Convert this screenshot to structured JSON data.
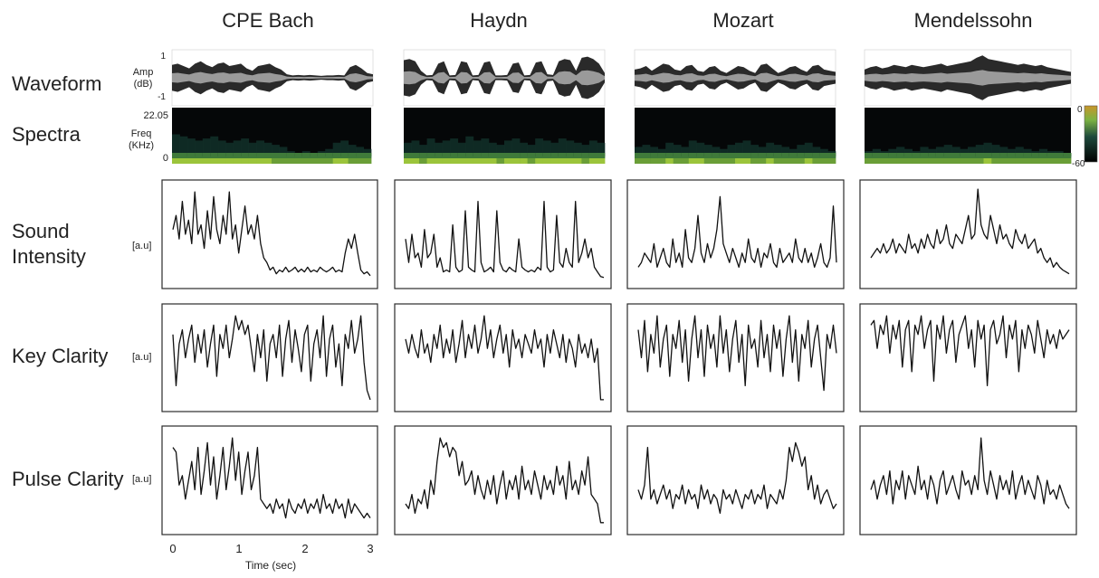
{
  "chart_data": {
    "type": "line",
    "composers": [
      "CPE Bach",
      "Haydn",
      "Mozart",
      "Mendelssohn"
    ],
    "row_labels": {
      "waveform": "Waveform",
      "spectra": "Spectra",
      "sound_intensity": [
        "Sound",
        "Intensity"
      ],
      "key_clarity": "Key Clarity",
      "pulse_clarity": "Pulse Clarity"
    },
    "waveform_axis": {
      "unit": [
        "Amp",
        "(dB)"
      ],
      "ticks": [
        "1",
        "-1"
      ],
      "ylim": [
        -1,
        1
      ]
    },
    "spectra_axis": {
      "unit": [
        "Freq",
        "(KHz)"
      ],
      "ticks": [
        "22.05",
        "0"
      ],
      "ylim": [
        0,
        22.05
      ]
    },
    "colorbar": {
      "ticks": [
        "0",
        "-60"
      ],
      "range": [
        -60,
        0
      ],
      "colors": [
        "#c8952a",
        "#7cb342",
        "#1e4a3c",
        "#000000"
      ]
    },
    "au_unit": "[a.u]",
    "x_axis": {
      "label": "Time (sec)",
      "ticks": [
        "0",
        "1",
        "2",
        "3"
      ],
      "xlim": [
        0,
        3
      ]
    },
    "series": {
      "waveform": [
        [
          0.55,
          0.6,
          0.5,
          0.4,
          0.6,
          0.7,
          0.55,
          0.45,
          0.6,
          0.65,
          0.5,
          0.55,
          0.6,
          0.4,
          0.3,
          0.5,
          0.55,
          0.6,
          0.45,
          0.35,
          0.15,
          0.1,
          0.12,
          0.1,
          0.12,
          0.1,
          0.08,
          0.1,
          0.1,
          0.12,
          0.1,
          0.45,
          0.55,
          0.4,
          0.2,
          0.15
        ],
        [
          0.75,
          0.8,
          0.7,
          0.3,
          0.1,
          0.12,
          0.6,
          0.7,
          0.1,
          0.12,
          0.7,
          0.65,
          0.1,
          0.12,
          0.65,
          0.7,
          0.1,
          0.1,
          0.12,
          0.6,
          0.65,
          0.1,
          0.12,
          0.65,
          0.7,
          0.15,
          0.12,
          0.7,
          0.8,
          0.75,
          0.3,
          0.85,
          0.9,
          0.8,
          0.6,
          0.2
        ],
        [
          0.35,
          0.4,
          0.5,
          0.3,
          0.45,
          0.6,
          0.55,
          0.35,
          0.3,
          0.5,
          0.55,
          0.3,
          0.25,
          0.45,
          0.5,
          0.3,
          0.2,
          0.35,
          0.5,
          0.45,
          0.3,
          0.2,
          0.55,
          0.6,
          0.4,
          0.2,
          0.3,
          0.45,
          0.5,
          0.35,
          0.25,
          0.5,
          0.55,
          0.35,
          0.3,
          0.25
        ],
        [
          0.35,
          0.45,
          0.5,
          0.4,
          0.45,
          0.55,
          0.5,
          0.45,
          0.55,
          0.5,
          0.45,
          0.5,
          0.55,
          0.6,
          0.5,
          0.55,
          0.6,
          0.65,
          0.7,
          0.85,
          0.95,
          0.8,
          0.75,
          0.7,
          0.65,
          0.6,
          0.55,
          0.6,
          0.55,
          0.5,
          0.55,
          0.45,
          0.4,
          0.35,
          0.3,
          0.25
        ]
      ],
      "spectra_energy": [
        [
          0.7,
          0.65,
          0.6,
          0.55,
          0.6,
          0.65,
          0.55,
          0.5,
          0.55,
          0.6,
          0.5,
          0.55,
          0.5,
          0.45,
          0.4,
          0.3,
          0.25,
          0.3,
          0.25,
          0.3,
          0.35,
          0.5,
          0.55,
          0.45,
          0.4,
          0.35
        ],
        [
          0.5,
          0.55,
          0.45,
          0.6,
          0.5,
          0.55,
          0.6,
          0.5,
          0.65,
          0.55,
          0.6,
          0.5,
          0.45,
          0.55,
          0.6,
          0.5,
          0.45,
          0.6,
          0.55,
          0.5,
          0.6,
          0.55,
          0.5,
          0.45,
          0.55,
          0.5
        ],
        [
          0.4,
          0.45,
          0.4,
          0.35,
          0.5,
          0.45,
          0.4,
          0.55,
          0.5,
          0.45,
          0.4,
          0.35,
          0.45,
          0.5,
          0.55,
          0.45,
          0.4,
          0.5,
          0.45,
          0.4,
          0.35,
          0.45,
          0.5,
          0.4,
          0.35,
          0.3
        ],
        [
          0.3,
          0.35,
          0.3,
          0.35,
          0.4,
          0.35,
          0.3,
          0.4,
          0.35,
          0.4,
          0.45,
          0.4,
          0.35,
          0.4,
          0.45,
          0.5,
          0.45,
          0.4,
          0.35,
          0.4,
          0.35,
          0.3,
          0.35,
          0.3,
          0.3,
          0.25
        ]
      ],
      "sound_intensity": [
        [
          0.55,
          0.7,
          0.45,
          0.85,
          0.5,
          0.65,
          0.4,
          0.95,
          0.5,
          0.6,
          0.35,
          0.75,
          0.45,
          0.9,
          0.55,
          0.4,
          0.7,
          0.5,
          0.95,
          0.45,
          0.6,
          0.3,
          0.55,
          0.8,
          0.5,
          0.6,
          0.45,
          0.7,
          0.4,
          0.25,
          0.2,
          0.12,
          0.15,
          0.08,
          0.12,
          0.1,
          0.15,
          0.1,
          0.12,
          0.15,
          0.1,
          0.13,
          0.1,
          0.15,
          0.1,
          0.12,
          0.1,
          0.15,
          0.12,
          0.1,
          0.12,
          0.15,
          0.1,
          0.12,
          0.1,
          0.3,
          0.45,
          0.35,
          0.5,
          0.3,
          0.12,
          0.08,
          0.1,
          0.06
        ],
        [
          0.45,
          0.2,
          0.5,
          0.25,
          0.3,
          0.15,
          0.55,
          0.25,
          0.3,
          0.5,
          0.15,
          0.25,
          0.1,
          0.12,
          0.1,
          0.6,
          0.15,
          0.1,
          0.12,
          0.75,
          0.15,
          0.12,
          0.1,
          0.85,
          0.2,
          0.1,
          0.12,
          0.15,
          0.1,
          0.75,
          0.2,
          0.12,
          0.1,
          0.15,
          0.12,
          0.1,
          0.45,
          0.15,
          0.12,
          0.1,
          0.12,
          0.1,
          0.15,
          0.12,
          0.85,
          0.15,
          0.1,
          0.12,
          0.7,
          0.2,
          0.15,
          0.35,
          0.2,
          0.15,
          0.85,
          0.2,
          0.3,
          0.45,
          0.25,
          0.35,
          0.15,
          0.1,
          0.05,
          0.04
        ],
        [
          0.15,
          0.2,
          0.3,
          0.25,
          0.2,
          0.4,
          0.15,
          0.25,
          0.35,
          0.2,
          0.15,
          0.45,
          0.2,
          0.3,
          0.15,
          0.55,
          0.25,
          0.2,
          0.35,
          0.7,
          0.3,
          0.2,
          0.4,
          0.25,
          0.35,
          0.55,
          0.9,
          0.4,
          0.3,
          0.2,
          0.35,
          0.25,
          0.15,
          0.3,
          0.2,
          0.45,
          0.25,
          0.2,
          0.35,
          0.15,
          0.3,
          0.25,
          0.4,
          0.2,
          0.15,
          0.35,
          0.2,
          0.25,
          0.3,
          0.2,
          0.45,
          0.25,
          0.2,
          0.35,
          0.2,
          0.3,
          0.15,
          0.25,
          0.4,
          0.2,
          0.15,
          0.25,
          0.8,
          0.2
        ],
        [
          0.25,
          0.3,
          0.35,
          0.3,
          0.4,
          0.3,
          0.35,
          0.45,
          0.3,
          0.4,
          0.35,
          0.3,
          0.5,
          0.35,
          0.4,
          0.3,
          0.45,
          0.35,
          0.5,
          0.4,
          0.35,
          0.55,
          0.4,
          0.45,
          0.6,
          0.4,
          0.35,
          0.5,
          0.45,
          0.4,
          0.55,
          0.7,
          0.45,
          0.5,
          0.98,
          0.6,
          0.5,
          0.45,
          0.7,
          0.55,
          0.4,
          0.6,
          0.45,
          0.5,
          0.4,
          0.35,
          0.55,
          0.45,
          0.4,
          0.5,
          0.35,
          0.4,
          0.45,
          0.3,
          0.35,
          0.25,
          0.2,
          0.25,
          0.15,
          0.2,
          0.15,
          0.12,
          0.1,
          0.08
        ]
      ],
      "key_clarity": [
        [
          0.75,
          0.2,
          0.65,
          0.8,
          0.5,
          0.7,
          0.85,
          0.45,
          0.75,
          0.55,
          0.8,
          0.4,
          0.65,
          0.85,
          0.3,
          0.75,
          0.6,
          0.85,
          0.5,
          0.7,
          0.95,
          0.8,
          0.9,
          0.75,
          0.85,
          0.6,
          0.35,
          0.75,
          0.5,
          0.8,
          0.25,
          0.65,
          0.75,
          0.5,
          0.85,
          0.3,
          0.7,
          0.9,
          0.45,
          0.8,
          0.6,
          0.35,
          0.75,
          0.85,
          0.25,
          0.65,
          0.8,
          0.5,
          0.95,
          0.3,
          0.7,
          0.85,
          0.4,
          0.65,
          0.2,
          0.75,
          0.6,
          0.9,
          0.55,
          0.7,
          0.95,
          0.45,
          0.15,
          0.05
        ],
        [
          0.7,
          0.55,
          0.75,
          0.6,
          0.5,
          0.8,
          0.55,
          0.65,
          0.45,
          0.75,
          0.6,
          0.85,
          0.5,
          0.7,
          0.55,
          0.8,
          0.45,
          0.65,
          0.9,
          0.5,
          0.75,
          0.6,
          0.85,
          0.55,
          0.7,
          0.95,
          0.6,
          0.8,
          0.5,
          0.7,
          0.85,
          0.55,
          0.75,
          0.4,
          0.8,
          0.6,
          0.7,
          0.5,
          0.75,
          0.65,
          0.55,
          0.8,
          0.6,
          0.7,
          0.4,
          0.75,
          0.55,
          0.8,
          0.65,
          0.5,
          0.75,
          0.45,
          0.7,
          0.6,
          0.4,
          0.75,
          0.55,
          0.65,
          0.5,
          0.7,
          0.45,
          0.6,
          0.05,
          0.05
        ],
        [
          0.8,
          0.5,
          0.9,
          0.35,
          0.75,
          0.55,
          0.95,
          0.4,
          0.7,
          0.85,
          0.3,
          0.75,
          0.6,
          0.9,
          0.45,
          0.8,
          0.25,
          0.7,
          0.95,
          0.5,
          0.8,
          0.3,
          0.85,
          0.6,
          0.75,
          0.4,
          0.95,
          0.55,
          0.8,
          0.35,
          0.7,
          0.9,
          0.45,
          0.75,
          0.2,
          0.85,
          0.6,
          0.7,
          0.4,
          0.9,
          0.5,
          0.75,
          0.35,
          0.85,
          0.6,
          0.8,
          0.3,
          0.7,
          0.95,
          0.45,
          0.8,
          0.25,
          0.75,
          0.6,
          0.9,
          0.4,
          0.7,
          0.85,
          0.5,
          0.15,
          0.75,
          0.6,
          0.85,
          0.55
        ],
        [
          0.85,
          0.9,
          0.6,
          0.85,
          0.75,
          0.95,
          0.55,
          0.85,
          0.7,
          0.9,
          0.4,
          0.8,
          0.9,
          0.35,
          0.85,
          0.75,
          0.95,
          0.6,
          0.8,
          0.9,
          0.25,
          0.85,
          0.7,
          0.95,
          0.55,
          0.8,
          0.9,
          0.45,
          0.75,
          0.85,
          0.95,
          0.6,
          0.8,
          0.4,
          0.9,
          0.7,
          0.85,
          0.2,
          0.8,
          0.9,
          0.65,
          0.75,
          0.95,
          0.5,
          0.85,
          0.7,
          0.9,
          0.35,
          0.8,
          0.6,
          0.85,
          0.75,
          0.55,
          0.9,
          0.7,
          0.5,
          0.8,
          0.65,
          0.75,
          0.6,
          0.8,
          0.7,
          0.75,
          0.8
        ]
      ],
      "pulse_clarity": [
        [
          0.85,
          0.8,
          0.45,
          0.55,
          0.3,
          0.5,
          0.7,
          0.4,
          0.85,
          0.35,
          0.6,
          0.9,
          0.45,
          0.75,
          0.3,
          0.55,
          0.85,
          0.4,
          0.65,
          0.95,
          0.5,
          0.8,
          0.35,
          0.6,
          0.8,
          0.4,
          0.55,
          0.85,
          0.3,
          0.25,
          0.2,
          0.25,
          0.15,
          0.3,
          0.2,
          0.25,
          0.1,
          0.3,
          0.2,
          0.15,
          0.25,
          0.2,
          0.3,
          0.15,
          0.25,
          0.2,
          0.3,
          0.15,
          0.35,
          0.2,
          0.25,
          0.15,
          0.3,
          0.2,
          0.25,
          0.1,
          0.3,
          0.15,
          0.25,
          0.2,
          0.15,
          0.1,
          0.15,
          0.1
        ],
        [
          0.25,
          0.2,
          0.35,
          0.15,
          0.3,
          0.25,
          0.4,
          0.2,
          0.5,
          0.35,
          0.7,
          0.95,
          0.85,
          0.9,
          0.75,
          0.85,
          0.8,
          0.55,
          0.7,
          0.45,
          0.5,
          0.6,
          0.35,
          0.55,
          0.4,
          0.3,
          0.5,
          0.35,
          0.55,
          0.25,
          0.45,
          0.6,
          0.3,
          0.5,
          0.4,
          0.55,
          0.3,
          0.65,
          0.4,
          0.5,
          0.35,
          0.6,
          0.45,
          0.3,
          0.55,
          0.4,
          0.5,
          0.35,
          0.65,
          0.45,
          0.55,
          0.3,
          0.7,
          0.4,
          0.5,
          0.35,
          0.6,
          0.45,
          0.75,
          0.35,
          0.3,
          0.25,
          0.05,
          0.05
        ],
        [
          0.4,
          0.3,
          0.45,
          0.85,
          0.3,
          0.4,
          0.25,
          0.35,
          0.45,
          0.3,
          0.4,
          0.2,
          0.35,
          0.3,
          0.45,
          0.25,
          0.4,
          0.3,
          0.35,
          0.2,
          0.45,
          0.3,
          0.4,
          0.25,
          0.35,
          0.3,
          0.15,
          0.4,
          0.3,
          0.35,
          0.25,
          0.4,
          0.3,
          0.2,
          0.35,
          0.3,
          0.4,
          0.25,
          0.35,
          0.3,
          0.45,
          0.2,
          0.35,
          0.3,
          0.25,
          0.4,
          0.3,
          0.5,
          0.85,
          0.7,
          0.9,
          0.8,
          0.65,
          0.75,
          0.4,
          0.55,
          0.3,
          0.45,
          0.25,
          0.35,
          0.4,
          0.3,
          0.2,
          0.25
        ],
        [
          0.4,
          0.5,
          0.3,
          0.45,
          0.55,
          0.35,
          0.6,
          0.25,
          0.5,
          0.4,
          0.6,
          0.3,
          0.55,
          0.45,
          0.35,
          0.65,
          0.4,
          0.5,
          0.3,
          0.55,
          0.45,
          0.25,
          0.5,
          0.6,
          0.35,
          0.45,
          0.55,
          0.4,
          0.3,
          0.6,
          0.45,
          0.5,
          0.35,
          0.55,
          0.4,
          0.95,
          0.5,
          0.35,
          0.6,
          0.45,
          0.3,
          0.55,
          0.4,
          0.5,
          0.35,
          0.6,
          0.3,
          0.45,
          0.55,
          0.35,
          0.5,
          0.4,
          0.3,
          0.55,
          0.45,
          0.25,
          0.5,
          0.35,
          0.4,
          0.3,
          0.45,
          0.35,
          0.25,
          0.2
        ]
      ]
    }
  }
}
